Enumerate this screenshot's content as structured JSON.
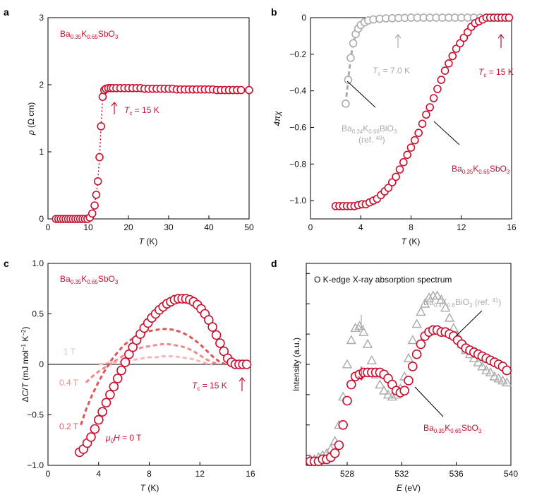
{
  "colors": {
    "red": "#c8102e",
    "grey": "#aaaaaa",
    "pink1": "#f6b7b7",
    "pink2": "#ef8a8a",
    "pink3": "#e05555"
  },
  "chart_data": [
    {
      "panel": "a",
      "type": "scatter",
      "xlabel_var": "T",
      "xlabel_unit": " (K)",
      "ylabel_var": "ρ",
      "ylabel_unit": " (Ω cm)",
      "xlim": [
        0,
        50
      ],
      "ylim": [
        0,
        3
      ],
      "xticks": [
        0,
        10,
        20,
        30,
        40,
        50
      ],
      "yticks": [
        0,
        1,
        2,
        3
      ],
      "legend": "Ba0.35K0.65SbO3",
      "annotation": "Tc = 15 K",
      "series": [
        {
          "name": "Ba0.35K0.65SbO3",
          "x": [
            2,
            2.6,
            3.2,
            3.8,
            4.4,
            5,
            5.6,
            6.2,
            6.8,
            7.4,
            8,
            8.6,
            9.2,
            9.8,
            10.4,
            11,
            11.6,
            12,
            12.4,
            12.8,
            13.2,
            13.6,
            14,
            14.4,
            15,
            15.6,
            16.2,
            17,
            18,
            19,
            20,
            21,
            22,
            23,
            24,
            25,
            26,
            27,
            28,
            29,
            30,
            31,
            32,
            33,
            34,
            35,
            36,
            37,
            38,
            39,
            40,
            41,
            42,
            43,
            44,
            45,
            46,
            47,
            48,
            50
          ],
          "y": [
            0,
            0,
            0,
            0,
            0,
            0,
            0,
            0,
            0,
            0,
            0,
            0,
            0,
            0,
            0.02,
            0.08,
            0.2,
            0.36,
            0.56,
            0.92,
            1.38,
            1.82,
            1.92,
            1.94,
            1.95,
            1.95,
            1.95,
            1.95,
            1.95,
            1.95,
            1.95,
            1.95,
            1.95,
            1.95,
            1.94,
            1.94,
            1.94,
            1.94,
            1.94,
            1.94,
            1.94,
            1.94,
            1.93,
            1.93,
            1.93,
            1.93,
            1.93,
            1.93,
            1.93,
            1.93,
            1.93,
            1.93,
            1.92,
            1.92,
            1.92,
            1.92,
            1.92,
            1.92,
            1.92,
            1.92
          ]
        }
      ]
    },
    {
      "panel": "b",
      "type": "scatter",
      "xlabel_var": "T",
      "xlabel_unit": " (K)",
      "ylabel": "4πχ",
      "xlim": [
        0,
        16
      ],
      "ylim": [
        -1.1,
        0
      ],
      "xticks": [
        0,
        4,
        8,
        12,
        16
      ],
      "yticks": [
        0,
        -0.2,
        -0.4,
        -0.6,
        -0.8,
        -1.0
      ],
      "ytick_labels": [
        "0",
        "−0.2",
        "−0.4",
        "−0.6",
        "−0.8",
        "−1.0"
      ],
      "annotations": [
        "Tc = 7.0 K",
        "Tc = 15 K",
        "Ba0.34K0.66BiO3",
        "(ref. 40)",
        "Ba0.35K0.65SbO3"
      ],
      "series": [
        {
          "name": "Ba0.35K0.65SbO3",
          "x": [
            2,
            2.3,
            2.6,
            2.9,
            3.2,
            3.5,
            3.8,
            4.1,
            4.4,
            4.7,
            5,
            5.3,
            5.6,
            5.9,
            6.2,
            6.5,
            6.8,
            7.1,
            7.4,
            7.7,
            8,
            8.3,
            8.6,
            8.9,
            9.2,
            9.5,
            9.8,
            10.1,
            10.4,
            10.7,
            11,
            11.3,
            11.6,
            11.9,
            12.2,
            12.5,
            12.8,
            13.1,
            13.4,
            13.7,
            14,
            14.3,
            14.6,
            14.9,
            15.2,
            15.5,
            15.8
          ],
          "y": [
            -1.03,
            -1.03,
            -1.03,
            -1.03,
            -1.03,
            -1.03,
            -1.025,
            -1.02,
            -1.02,
            -1.01,
            -1.0,
            -0.99,
            -0.97,
            -0.95,
            -0.93,
            -0.9,
            -0.87,
            -0.83,
            -0.79,
            -0.75,
            -0.71,
            -0.67,
            -0.63,
            -0.58,
            -0.53,
            -0.49,
            -0.44,
            -0.39,
            -0.34,
            -0.29,
            -0.25,
            -0.21,
            -0.17,
            -0.14,
            -0.11,
            -0.08,
            -0.05,
            -0.03,
            -0.02,
            -0.01,
            0,
            0,
            0,
            0,
            0,
            0,
            0
          ]
        },
        {
          "name": "Ba0.34K0.66BiO3",
          "x": [
            2.8,
            3,
            3.2,
            3.4,
            3.6,
            3.8,
            4,
            4.3,
            4.6,
            5,
            5.5,
            6,
            6.5,
            7,
            7.5,
            8,
            8.5,
            9,
            9.5,
            10,
            10.5,
            11,
            11.5,
            12,
            12.5,
            13,
            13.5,
            14,
            14.5,
            15,
            15.5
          ],
          "y": [
            -0.47,
            -0.34,
            -0.22,
            -0.14,
            -0.09,
            -0.06,
            -0.04,
            -0.025,
            -0.015,
            -0.01,
            -0.006,
            -0.004,
            -0.003,
            -0.002,
            -0.001,
            0,
            0,
            0,
            0,
            0,
            0,
            0,
            0,
            0,
            0,
            0,
            0,
            0,
            0,
            0,
            0
          ]
        }
      ]
    },
    {
      "panel": "c",
      "type": "line",
      "xlabel_var": "T",
      "xlabel_unit": " (K)",
      "ylabel": "ΔC/T (mJ mol⁻¹ K⁻²)",
      "xlim": [
        0,
        16
      ],
      "ylim": [
        -1.0,
        1.0
      ],
      "xticks": [
        0,
        4,
        8,
        12,
        16
      ],
      "yticks": [
        -1.0,
        -0.5,
        0,
        0.5,
        1.0
      ],
      "ytick_labels": [
        "−1.0",
        "−0.5",
        "0",
        "0.5",
        "1.0"
      ],
      "legend": "Ba0.35K0.65SbO3",
      "annotation": "Tc = 15 K",
      "series": [
        {
          "name": "μ0H = 0 T",
          "x": [
            2.5,
            2.8,
            3.1,
            3.4,
            3.7,
            4,
            4.3,
            4.6,
            4.9,
            5.2,
            5.5,
            5.8,
            6.1,
            6.4,
            6.7,
            7,
            7.3,
            7.6,
            7.9,
            8.2,
            8.5,
            8.8,
            9.1,
            9.4,
            9.7,
            10,
            10.3,
            10.6,
            10.9,
            11.2,
            11.5,
            11.8,
            12.1,
            12.4,
            12.7,
            13,
            13.3,
            13.6,
            13.9,
            14.2,
            14.5,
            14.8,
            15.1,
            15.4,
            15.7
          ],
          "y": [
            -0.87,
            -0.84,
            -0.78,
            -0.72,
            -0.64,
            -0.55,
            -0.47,
            -0.38,
            -0.3,
            -0.22,
            -0.14,
            -0.06,
            0.02,
            0.1,
            0.17,
            0.24,
            0.3,
            0.36,
            0.41,
            0.46,
            0.5,
            0.54,
            0.57,
            0.6,
            0.62,
            0.64,
            0.65,
            0.65,
            0.65,
            0.64,
            0.62,
            0.59,
            0.55,
            0.5,
            0.44,
            0.37,
            0.29,
            0.21,
            0.13,
            0.06,
            0.02,
            0,
            0,
            0,
            0
          ]
        },
        {
          "name": "0.2 T",
          "x": [
            2.6,
            3,
            3.5,
            4,
            4.5,
            5,
            5.5,
            6,
            6.5,
            7,
            7.5,
            8,
            8.5,
            9,
            9.5,
            10,
            10.5,
            11,
            11.5,
            12,
            12.5,
            13,
            13.5,
            14
          ],
          "y": [
            -0.6,
            -0.45,
            -0.3,
            -0.17,
            -0.06,
            0.04,
            0.12,
            0.19,
            0.24,
            0.28,
            0.31,
            0.33,
            0.34,
            0.35,
            0.35,
            0.34,
            0.32,
            0.29,
            0.25,
            0.2,
            0.14,
            0.08,
            0.03,
            0
          ]
        },
        {
          "name": "0.4 T",
          "x": [
            3,
            3.5,
            4,
            4.5,
            5,
            5.5,
            6,
            6.5,
            7,
            7.5,
            8,
            8.5,
            9,
            9.5,
            10,
            10.5,
            11,
            11.5,
            12,
            12.5,
            13,
            13.5
          ],
          "y": [
            -0.18,
            -0.12,
            -0.07,
            -0.03,
            0.01,
            0.05,
            0.09,
            0.12,
            0.15,
            0.17,
            0.18,
            0.19,
            0.2,
            0.2,
            0.19,
            0.18,
            0.16,
            0.13,
            0.09,
            0.05,
            0.02,
            0
          ]
        },
        {
          "name": "1 T",
          "x": [
            4,
            4.5,
            5,
            5.5,
            6,
            6.5,
            7,
            7.5,
            8,
            8.5,
            9,
            9.5,
            10,
            10.5,
            11,
            11.5,
            12,
            12.5,
            13
          ],
          "y": [
            0,
            0.01,
            0.02,
            0.02,
            0.03,
            0.04,
            0.05,
            0.06,
            0.07,
            0.07,
            0.08,
            0.08,
            0.08,
            0.07,
            0.06,
            0.05,
            0.03,
            0.01,
            0
          ]
        }
      ]
    },
    {
      "panel": "d",
      "type": "scatter",
      "title": "O K-edge X-ray absorption spectrum",
      "xlabel_var": "E",
      "xlabel_unit": " (eV)",
      "ylabel": "Intensity (a.u.)",
      "xlim": [
        525,
        540
      ],
      "xticks": [
        528,
        532,
        536,
        540
      ],
      "annotations": [
        "Ba0.4K0.6BiO3 (ref. 41)",
        "Ba0.35K0.65SbO3"
      ],
      "series": [
        {
          "name": "Ba0.35K0.65SbO3",
          "x": [
            525.3,
            525.6,
            525.9,
            526.2,
            526.5,
            526.8,
            527.1,
            527.4,
            527.7,
            528,
            528.3,
            528.6,
            528.9,
            529.2,
            529.5,
            529.8,
            530.1,
            530.4,
            530.7,
            531,
            531.3,
            531.6,
            531.9,
            532.2,
            532.5,
            532.8,
            533.1,
            533.4,
            533.7,
            534,
            534.3,
            534.6,
            534.9,
            535.2,
            535.5,
            535.8,
            536.1,
            536.4,
            536.7,
            537,
            537.3,
            537.6,
            537.9,
            538.2,
            538.5,
            538.8,
            539.1,
            539.4,
            539.7
          ],
          "y": [
            0.02,
            0.02,
            0.02,
            0.03,
            0.03,
            0.04,
            0.06,
            0.1,
            0.2,
            0.32,
            0.4,
            0.44,
            0.45,
            0.46,
            0.46,
            0.46,
            0.46,
            0.46,
            0.45,
            0.43,
            0.4,
            0.37,
            0.36,
            0.37,
            0.42,
            0.49,
            0.55,
            0.6,
            0.64,
            0.66,
            0.67,
            0.67,
            0.66,
            0.66,
            0.65,
            0.64,
            0.62,
            0.6,
            0.58,
            0.57,
            0.56,
            0.55,
            0.54,
            0.53,
            0.52,
            0.51,
            0.5,
            0.49,
            0.47
          ]
        },
        {
          "name": "Ba0.4K0.6BiO3",
          "x": [
            525.3,
            525.6,
            525.9,
            526.2,
            526.5,
            526.8,
            527.1,
            527.4,
            527.7,
            528,
            528.3,
            528.6,
            528.9,
            529.2,
            529.5,
            529.8,
            530.1,
            530.4,
            530.7,
            531,
            531.3,
            531.6,
            531.9,
            532.2,
            532.5,
            532.8,
            533.1,
            533.4,
            533.7,
            534,
            534.3,
            534.6,
            534.9,
            535.2,
            535.5,
            535.8,
            536.1,
            536.4,
            536.7,
            537,
            537.3,
            537.6,
            537.9,
            538.2,
            538.5,
            538.8,
            539.1,
            539.4,
            539.7
          ],
          "y": [
            0.03,
            0.03,
            0.04,
            0.05,
            0.06,
            0.08,
            0.12,
            0.2,
            0.34,
            0.5,
            0.62,
            0.68,
            0.69,
            0.66,
            0.6,
            0.52,
            0.45,
            0.4,
            0.37,
            0.35,
            0.34,
            0.35,
            0.38,
            0.44,
            0.53,
            0.62,
            0.7,
            0.76,
            0.8,
            0.83,
            0.84,
            0.84,
            0.82,
            0.78,
            0.73,
            0.68,
            0.64,
            0.6,
            0.57,
            0.55,
            0.53,
            0.51,
            0.49,
            0.47,
            0.46,
            0.44,
            0.43,
            0.42,
            0.41
          ]
        }
      ]
    }
  ]
}
